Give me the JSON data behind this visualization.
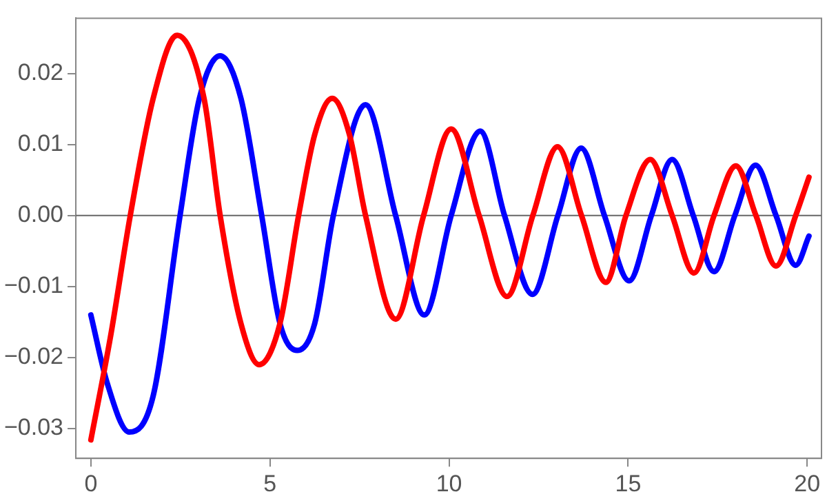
{
  "chart_data": {
    "type": "line",
    "xlim": [
      -0.42,
      20.4
    ],
    "ylim": [
      -0.0342,
      0.0278
    ],
    "xticks": [
      0,
      5,
      10,
      15,
      20
    ],
    "yticks": [
      {
        "value": -0.03,
        "label": "−0.03"
      },
      {
        "value": -0.02,
        "label": "−0.02"
      },
      {
        "value": -0.01,
        "label": "−0.01"
      },
      {
        "value": 0,
        "label": "0.00"
      },
      0.01,
      0.02
    ],
    "grid": false,
    "legend": false,
    "marker": "none",
    "line_style": "solid",
    "ref_lines": [
      {
        "axis": "y",
        "value": 0,
        "color": "#666666"
      }
    ],
    "series": [
      {
        "color": "#ff0000",
        "x": [
          0,
          0.55,
          1.1,
          1.74,
          2.41,
          3.16,
          3.61,
          4.19,
          4.7,
          5.28,
          5.8,
          6.25,
          6.74,
          7.22,
          7.67,
          8.51,
          9.29,
          10.06,
          10.84,
          11.62,
          12.34,
          13.03,
          13.7,
          14.38,
          14.94,
          15.62,
          16.23,
          16.84,
          17.4,
          18.01,
          18.57,
          19.13,
          19.68,
          20.05
        ],
        "values": [
          -0.0316,
          -0.017,
          0,
          0.0165,
          0.0254,
          0.0165,
          0,
          -0.0152,
          -0.021,
          -0.0152,
          0,
          0.0114,
          0.0165,
          0.0114,
          0,
          -0.0146,
          0,
          0.0122,
          0,
          -0.0114,
          0,
          0.0097,
          0,
          -0.0094,
          0,
          0.0079,
          0,
          -0.0081,
          0,
          0.007,
          0,
          -0.0071,
          0,
          0.0054
        ]
      },
      {
        "color": "#0000ff",
        "x": [
          0,
          0.45,
          1.07,
          1.74,
          2.49,
          3.03,
          3.61,
          4.19,
          4.77,
          5.28,
          5.76,
          6.25,
          6.77,
          7.67,
          8.51,
          9.31,
          10.06,
          10.87,
          11.55,
          12.33,
          13.04,
          13.69,
          14.34,
          15.03,
          15.65,
          16.23,
          16.82,
          17.4,
          17.98,
          18.56,
          19.13,
          19.68,
          20.05
        ],
        "values": [
          -0.014,
          -0.0235,
          -0.0305,
          -0.0254,
          0,
          0.0165,
          0.0225,
          0.0165,
          0,
          -0.0152,
          -0.019,
          -0.0152,
          0,
          0.0156,
          0,
          -0.014,
          0,
          0.0119,
          0,
          -0.0111,
          0,
          0.0095,
          0,
          -0.0092,
          0,
          0.0079,
          0,
          -0.0079,
          0,
          0.0071,
          0,
          -0.007,
          -0.0029
        ]
      }
    ]
  }
}
